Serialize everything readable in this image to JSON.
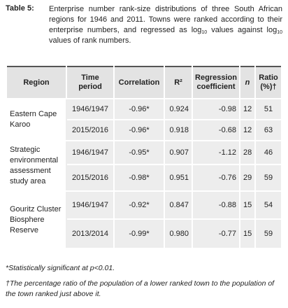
{
  "caption": {
    "label": "Table 5:",
    "parts": [
      "Enterprise number rank-size distributions of three South African regions for 1946 and 2011. Towns were ranked according to their enterprise numbers, and regressed as log",
      "10",
      " values against log",
      "10",
      " values of rank numbers."
    ]
  },
  "table": {
    "headers": [
      "Region",
      "Time period",
      "Correlation",
      "R²",
      "Regression coefficient",
      "n",
      "Ratio (%)†"
    ],
    "groups": [
      {
        "region": "Eastern Cape Karoo",
        "rows": [
          [
            "1946/1947",
            "-0.96*",
            "0.924",
            "-0.98",
            "12",
            "51"
          ],
          [
            "2015/2016",
            "-0.96*",
            "0.918",
            "-0.68",
            "12",
            "63"
          ]
        ]
      },
      {
        "region": "Strategic environmental assessment study area",
        "rows": [
          [
            "1946/1947",
            "-0.95*",
            "0.907",
            "-1.12",
            "28",
            "46"
          ],
          [
            "2015/2016",
            "-0.98*",
            "0.951",
            "-0.76",
            "29",
            "59"
          ]
        ]
      },
      {
        "region": "Gouritz Cluster Biosphere Reserve",
        "rows": [
          [
            "1946/1947",
            "-0.92*",
            "0.847",
            "-0.88",
            "15",
            "54"
          ],
          [
            "2013/2014",
            "-0.99*",
            "0.980",
            "-0.77",
            "15",
            "59"
          ]
        ]
      }
    ]
  },
  "notes": [
    "*Statistically significant at p<0.01.",
    "†The percentage ratio of the population of a lower ranked town to the population of the town ranked just above it."
  ]
}
